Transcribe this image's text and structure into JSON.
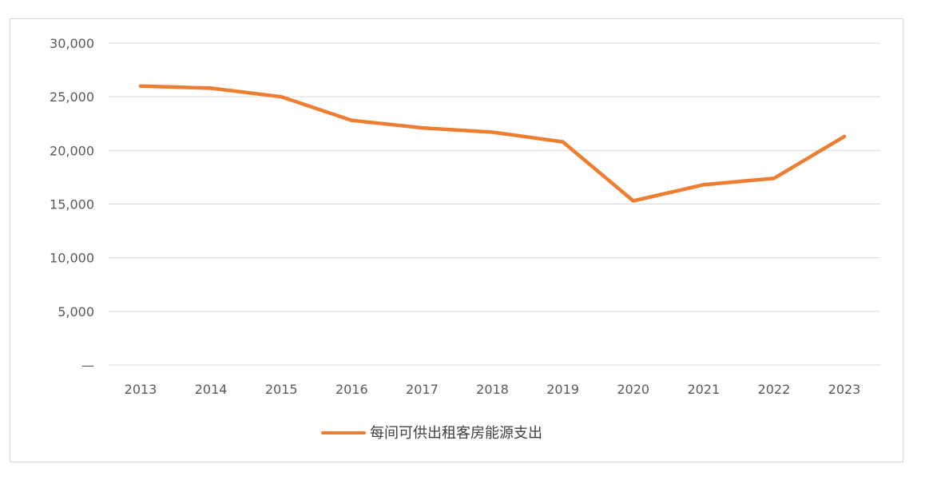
{
  "chart_data": {
    "type": "line",
    "categories": [
      "2013",
      "2014",
      "2015",
      "2016",
      "2017",
      "2018",
      "2019",
      "2020",
      "2021",
      "2022",
      "2023"
    ],
    "series": [
      {
        "name": "每间可供出租客房能源支出",
        "values": [
          26000,
          25800,
          25000,
          22800,
          22100,
          21700,
          20800,
          15300,
          16800,
          17400,
          21300
        ],
        "color": "#ed7d31"
      }
    ],
    "y_ticks": [
      {
        "value": 0,
        "label": "—"
      },
      {
        "value": 5000,
        "label": "5,000"
      },
      {
        "value": 10000,
        "label": "10,000"
      },
      {
        "value": 15000,
        "label": "15,000"
      },
      {
        "value": 20000,
        "label": "20,000"
      },
      {
        "value": 25000,
        "label": "25,000"
      },
      {
        "value": 30000,
        "label": "30,000"
      }
    ],
    "ylim": [
      0,
      30000
    ],
    "grid": true,
    "legend_position": "bottom",
    "gridline_color": "#d9d9d9"
  }
}
